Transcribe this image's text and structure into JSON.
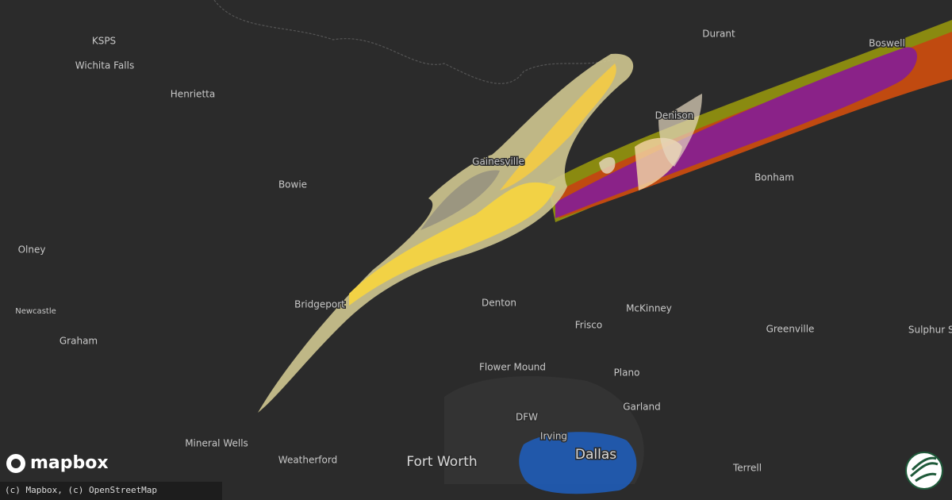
{
  "map": {
    "cities": [
      "KSPS",
      "Wichita Falls",
      "Henrietta",
      "Bowie",
      "Olney",
      "Newcastle",
      "Graham",
      "Bridgeport",
      "Mineral Wells",
      "Weatherford",
      "Fort Worth",
      "DFW",
      "Irving",
      "Dallas",
      "Flower Mound",
      "Denton",
      "Frisco",
      "McKinney",
      "Plano",
      "Garland",
      "Terrell",
      "Greenville",
      "Sulphur Spr",
      "Bonham",
      "Denison",
      "Durant",
      "Boswell",
      "Gainesville"
    ],
    "logo": "mapbox",
    "attribution": "(c) Mapbox, (c) OpenStreetMap"
  }
}
